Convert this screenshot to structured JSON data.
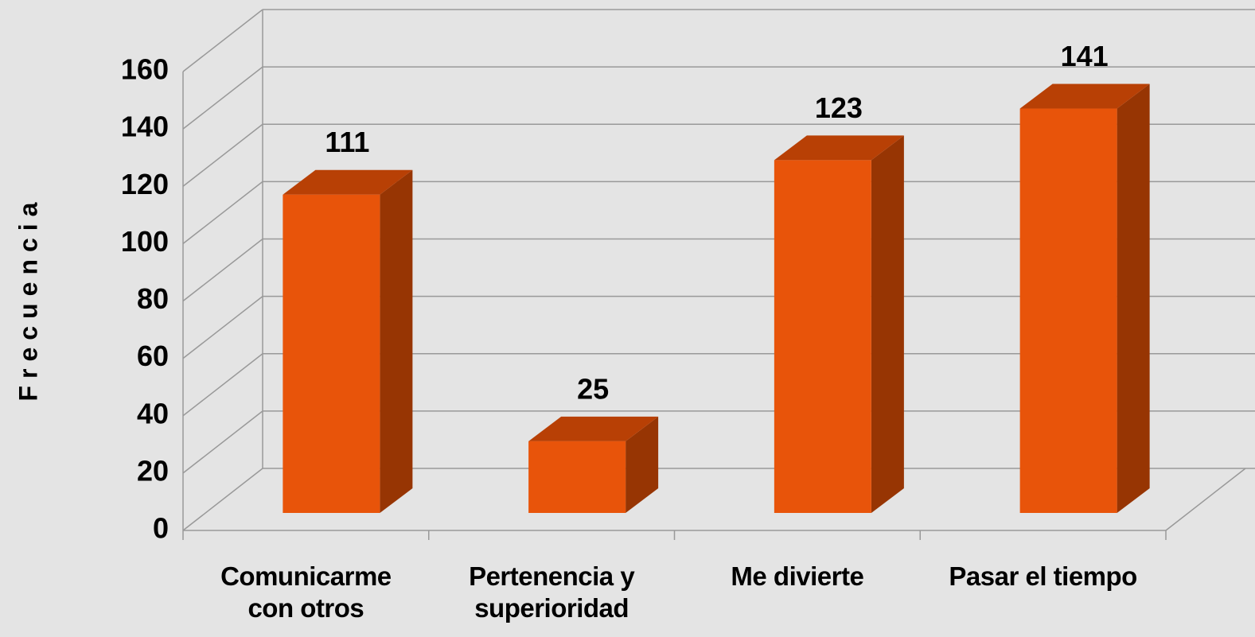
{
  "chart_data": {
    "type": "bar",
    "ylabel": "Frecuencia",
    "categories": [
      "Comunicarme con otros",
      "Pertenencia y superioridad",
      "Me divierte",
      "Pasar el tiempo"
    ],
    "values": [
      111,
      25,
      123,
      141
    ],
    "color": "#e8540a",
    "ylim": [
      0,
      160
    ],
    "yticks": [
      0,
      20,
      40,
      60,
      80,
      100,
      120,
      140,
      160
    ],
    "grid": true
  }
}
